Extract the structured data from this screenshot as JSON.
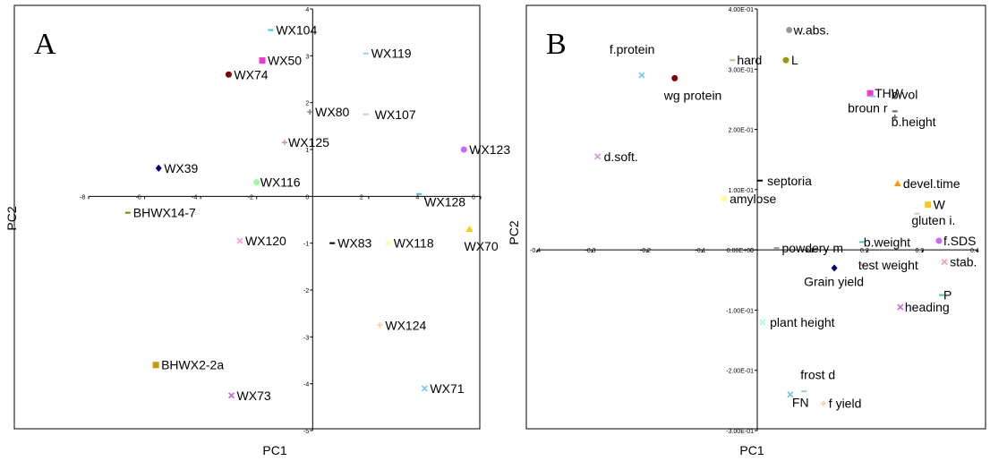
{
  "chart_data": [
    {
      "type": "scatter",
      "panel_label": "A",
      "xlabel": "PC1",
      "ylabel": "PC2",
      "xlim": [
        -8,
        6
      ],
      "ylim": [
        -5,
        4
      ],
      "x_ticks": [
        "-8",
        "-6",
        "-4",
        "-2",
        "2",
        "4",
        "6"
      ],
      "y_ticks": [
        "4",
        "3",
        "2",
        "1",
        "-1",
        "-2",
        "-3",
        "-4",
        "-5"
      ],
      "zero_label": "0",
      "points": [
        {
          "label": "WX104",
          "x": -1.5,
          "y": 3.55,
          "color": "#33cccc",
          "marker": "dash"
        },
        {
          "label": "WX119",
          "x": 1.9,
          "y": 3.05,
          "color": "#99ccff",
          "marker": "dash"
        },
        {
          "label": "WX50",
          "x": -1.8,
          "y": 2.9,
          "color": "#ff33cc",
          "marker": "square"
        },
        {
          "label": "WX74",
          "x": -3.0,
          "y": 2.6,
          "color": "#800000",
          "marker": "circle"
        },
        {
          "label": "WX80",
          "x": -0.1,
          "y": 1.8,
          "color": "#888888",
          "marker": "plus"
        },
        {
          "label": "WX107",
          "x": 1.9,
          "y": 1.75,
          "color": "#cccccc",
          "marker": "dash"
        },
        {
          "label": "WX125",
          "x": -1.0,
          "y": 1.15,
          "color": "#cc9999",
          "marker": "plus"
        },
        {
          "label": "WX123",
          "x": 5.4,
          "y": 1.0,
          "color": "#cc66ff",
          "marker": "circle"
        },
        {
          "label": "WX39",
          "x": -5.5,
          "y": 0.6,
          "color": "#000080",
          "marker": "diamond"
        },
        {
          "label": "WX116",
          "x": -2.0,
          "y": 0.3,
          "color": "#99ff99",
          "marker": "circle"
        },
        {
          "label": "WX128",
          "x": 3.8,
          "y": 0.05,
          "color": "#33cccc",
          "marker": "dash"
        },
        {
          "label": "BHWX14-7",
          "x": -6.6,
          "y": -0.35,
          "color": "#808000",
          "marker": "dash"
        },
        {
          "label": "WX70",
          "x": 5.6,
          "y": -0.7,
          "color": "#ffcc00",
          "marker": "triangle"
        },
        {
          "label": "WX120",
          "x": -2.6,
          "y": -0.95,
          "color": "#ff99cc",
          "marker": "x"
        },
        {
          "label": "WX83",
          "x": 0.7,
          "y": -1.0,
          "color": "#000000",
          "marker": "dash"
        },
        {
          "label": "WX118",
          "x": 2.7,
          "y": -1.0,
          "color": "#ffff99",
          "marker": "x"
        },
        {
          "label": "WX124",
          "x": 2.4,
          "y": -2.75,
          "color": "#ffcc99",
          "marker": "plus"
        },
        {
          "label": "BHWX2-2a",
          "x": -5.6,
          "y": -3.6,
          "color": "#cc9900",
          "marker": "square"
        },
        {
          "label": "WX73",
          "x": -2.9,
          "y": -4.25,
          "color": "#cc66cc",
          "marker": "x"
        },
        {
          "label": "WX71",
          "x": 4.0,
          "y": -4.1,
          "color": "#66ccff",
          "marker": "x"
        }
      ]
    },
    {
      "type": "scatter",
      "panel_label": "B",
      "xlabel": "PC1",
      "ylabel": "PC2",
      "xlim": [
        -0.4,
        0.4
      ],
      "ylim": [
        -0.3,
        0.4
      ],
      "x_ticks": [
        "-0.4",
        "-0.3",
        "-0.2",
        "-0.1",
        "0",
        "0.1",
        "0.2",
        "0.3",
        "0.4"
      ],
      "y_ticks": [
        "4.00E-01",
        "3.00E-01",
        "2.00E-01",
        "1.00E-01",
        "0.00E+00",
        "-1.00E-01",
        "-2.00E-01",
        "-3.00E-01"
      ],
      "points": [
        {
          "label": "w.abs.",
          "x": 0.058,
          "y": 0.365,
          "color": "#999999",
          "marker": "circle"
        },
        {
          "label": "hard",
          "x": -0.045,
          "y": 0.315,
          "color": "#99cc99",
          "marker": "dash"
        },
        {
          "label": "L",
          "x": 0.052,
          "y": 0.315,
          "color": "#999900",
          "marker": "circle"
        },
        {
          "label": "f.protein",
          "x": -0.21,
          "y": 0.29,
          "color": "#66ccff",
          "marker": "x"
        },
        {
          "label": "wg protein",
          "x": -0.15,
          "y": 0.285,
          "color": "#800000",
          "marker": "circle"
        },
        {
          "label": "THW",
          "x": 0.205,
          "y": 0.26,
          "color": "#ff33cc",
          "marker": "square"
        },
        {
          "label": "broun r",
          "x": 0.21,
          "y": 0.255,
          "color": "#66ccff",
          "marker": "dash"
        },
        {
          "label": "b.vol",
          "x": 0.25,
          "y": 0.23,
          "color": "#666666",
          "marker": "dash"
        },
        {
          "label": "b.height",
          "x": 0.25,
          "y": 0.22,
          "color": "#666666",
          "marker": "plus"
        },
        {
          "label": "d.soft.",
          "x": -0.29,
          "y": 0.155,
          "color": "#cc99cc",
          "marker": "x"
        },
        {
          "label": "septoria",
          "x": 0.005,
          "y": 0.115,
          "color": "#000000",
          "marker": "dash"
        },
        {
          "label": "devel.time",
          "x": 0.255,
          "y": 0.11,
          "color": "#ff9900",
          "marker": "triangle"
        },
        {
          "label": "amylose",
          "x": -0.06,
          "y": 0.085,
          "color": "#ffff99",
          "marker": "circle"
        },
        {
          "label": "W",
          "x": 0.31,
          "y": 0.075,
          "color": "#ffcc00",
          "marker": "square"
        },
        {
          "label": "gluten i.",
          "x": 0.29,
          "y": 0.06,
          "color": "#cccccc",
          "marker": "dash"
        },
        {
          "label": "b.weight",
          "x": 0.19,
          "y": 0.013,
          "color": "#33cccc",
          "marker": "dash"
        },
        {
          "label": "f.SDS",
          "x": 0.33,
          "y": 0.015,
          "color": "#cc66ff",
          "marker": "circle"
        },
        {
          "label": "powdery m",
          "x": 0.035,
          "y": 0.003,
          "color": "#999999",
          "marker": "dash"
        },
        {
          "label": "stab.",
          "x": 0.34,
          "y": -0.02,
          "color": "#ff9999",
          "marker": "x"
        },
        {
          "label": "test weight",
          "x": 0.19,
          "y": -0.025,
          "color": "#ff99cc",
          "marker": "dash"
        },
        {
          "label": "Grain yield",
          "x": 0.14,
          "y": -0.03,
          "color": "#000080",
          "marker": "diamond"
        },
        {
          "label": "P",
          "x": 0.335,
          "y": -0.075,
          "color": "#33cccc",
          "marker": "dash"
        },
        {
          "label": "heading",
          "x": 0.26,
          "y": -0.095,
          "color": "#cc66cc",
          "marker": "x"
        },
        {
          "label": "plant height",
          "x": 0.01,
          "y": -0.12,
          "color": "#99ffcc",
          "marker": "x"
        },
        {
          "label": "frost d",
          "x": 0.085,
          "y": -0.235,
          "color": "#99cccc",
          "marker": "dash"
        },
        {
          "label": "FN",
          "x": 0.06,
          "y": -0.24,
          "color": "#66cccc",
          "marker": "x"
        },
        {
          "label": "f yield",
          "x": 0.12,
          "y": -0.255,
          "color": "#ffcc99",
          "marker": "plus"
        }
      ]
    }
  ]
}
